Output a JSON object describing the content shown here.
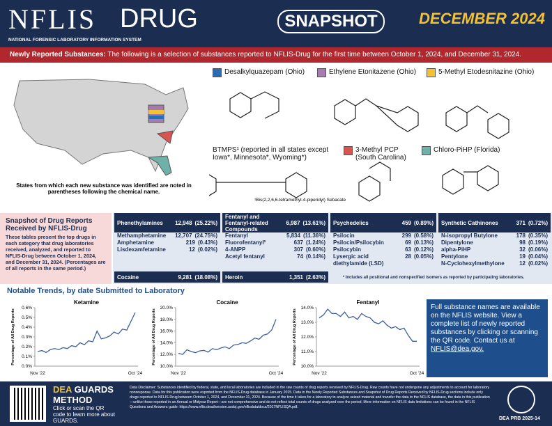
{
  "header": {
    "logo": "NFLIS",
    "logo_drug": "DRUG",
    "subtitle": "NATIONAL FORENSIC LABORATORY INFORMATION SYSTEM",
    "snapshot": "SNAPSHOT",
    "date": "DECEMBER 2024"
  },
  "new_substances": {
    "label": "Newly Reported Substances:",
    "description": "The following is a selection of substances reported to NFLIS-Drug for the first time between October 1, 2024, and December 31, 2024.",
    "map_caption": "States from which each new substance was identified are noted in parentheses following the chemical name.",
    "items": [
      {
        "name": "Desalkylquazepam (Ohio)",
        "color": "#2a6db3"
      },
      {
        "name": "Ethylene Etonitazene (Ohio)",
        "color": "#a57bb0"
      },
      {
        "name": "5-Methyl Etodesnitazine (Ohio)",
        "color": "#f2c230"
      },
      {
        "name": "BTMPS¹ (reported in all states except Iowa*, Minnesota*, Wyoming*)",
        "color": null
      },
      {
        "name": "3-Methyl PCP (South Carolina)",
        "color": "#d9534f"
      },
      {
        "name": "Chloro-PiHP (Florida)",
        "color": "#6fb0a8"
      }
    ],
    "footnote": "¹Bis(2,2,6,6-tetramethyl-4-piperidyl) Sebacate"
  },
  "snapshot": {
    "title": "Snapshot of Drug Reports Received by NFLIS-Drug",
    "description": "These tables present the top drugs in each category that drug laboratories received, analyzed, and reported to NFLIS-Drug between October 1, 2024, and December 31, 2024. (Percentages are of all reports in the same period.)",
    "groups": [
      {
        "name": "Phenethylamines",
        "total": "12,948",
        "pct": "(25.22%)",
        "rows": [
          [
            "Methamphetamine",
            "12,707",
            "(24.75%)"
          ],
          [
            "Amphetamine",
            "219",
            "(0.43%)"
          ],
          [
            "Lisdexamfetamine",
            "12",
            "(0.02%)"
          ]
        ]
      },
      {
        "name": "Fentanyl and Fentanyl-related Compounds",
        "total": "6,987",
        "pct": "(13.61%)",
        "rows": [
          [
            "Fentanyl",
            "5,834",
            "(11.36%)"
          ],
          [
            "Fluorofentanyl²",
            "637",
            "(1.24%)"
          ],
          [
            "4-ANPP",
            "307",
            "(0.60%)"
          ],
          [
            "Acetyl fentanyl",
            "74",
            "(0.14%)"
          ]
        ]
      },
      {
        "name": "Psychedelics",
        "total": "459",
        "pct": "(0.89%)",
        "rows": [
          [
            "Psilocin",
            "299",
            "(0.58%)"
          ],
          [
            "Psilocin/Psilocybin",
            "69",
            "(0.13%)"
          ],
          [
            "Psilocybin",
            "63",
            "(0.12%)"
          ],
          [
            "Lysergic acid diethylamide (LSD)",
            "28",
            "(0.05%)"
          ]
        ]
      },
      {
        "name": "Synthetic Cathinones",
        "total": "371",
        "pct": "(0.72%)",
        "rows": [
          [
            "N-isopropyl Butylone",
            "178",
            "(0.35%)"
          ],
          [
            "Dipentylone",
            "98",
            "(0.19%)"
          ],
          [
            "alpha-PiHP",
            "32",
            "(0.06%)"
          ],
          [
            "Pentylone",
            "19",
            "(0.04%)"
          ],
          [
            "N-Cyclohexylmethylone",
            "12",
            "(0.02%)"
          ]
        ]
      }
    ],
    "bottom": [
      {
        "name": "Cocaine",
        "total": "9,281",
        "pct": "(18.08%)"
      },
      {
        "name": "Heroin",
        "total": "1,351",
        "pct": "(2.63%)"
      }
    ],
    "footnote": "² Includes all positional and nonspecified isomers as reported by participating laboratories."
  },
  "trends_title": "Notable Trends, by date Submitted to Laboratory",
  "chart_data": [
    {
      "type": "line",
      "title": "Ketamine",
      "y_label": "Percentage of All Drug Reports",
      "color": "#3a5f9a",
      "grid": false,
      "categories": [
        "Nov '22",
        null,
        null,
        null,
        null,
        null,
        null,
        null,
        null,
        null,
        null,
        null,
        null,
        null,
        null,
        null,
        null,
        null,
        null,
        null,
        null,
        null,
        null,
        "Oct '24"
      ],
      "values": [
        0.15,
        0.16,
        0.14,
        0.17,
        0.18,
        0.17,
        0.19,
        0.18,
        0.21,
        0.2,
        0.24,
        0.22,
        0.26,
        0.25,
        0.36,
        0.28,
        0.29,
        0.31,
        0.35,
        0.33,
        0.38,
        0.37,
        0.46,
        0.55
      ],
      "ylim": [
        0,
        0.6
      ],
      "yticks": [
        {
          "value": 0,
          "label": "0.0%"
        },
        {
          "value": 0.1,
          "label": "0.1%"
        },
        {
          "value": 0.2,
          "label": "0.2%"
        },
        {
          "value": 0.3,
          "label": "0.3%"
        },
        {
          "value": 0.4,
          "label": "0.4%"
        },
        {
          "value": 0.5,
          "label": "0.5%"
        },
        {
          "value": 0.6,
          "label": "0.6%"
        }
      ]
    },
    {
      "type": "line",
      "title": "Cocaine",
      "y_label": "Percentage of All Drug Reports",
      "color": "#3a5f9a",
      "grid": false,
      "categories": [
        "Nov '22",
        null,
        null,
        null,
        null,
        null,
        null,
        null,
        null,
        null,
        null,
        null,
        null,
        null,
        null,
        null,
        null,
        null,
        null,
        null,
        null,
        null,
        null,
        "Oct '24"
      ],
      "values": [
        12.2,
        12.0,
        12.8,
        12.5,
        12.3,
        12.6,
        12.7,
        12.4,
        13.0,
        12.8,
        13.1,
        13.3,
        13.0,
        13.6,
        13.7,
        14.0,
        13.9,
        14.3,
        14.8,
        14.6,
        15.3,
        15.5,
        16.2,
        18.0
      ],
      "ylim": [
        10,
        20
      ],
      "yticks": [
        {
          "value": 10,
          "label": "10.0%"
        },
        {
          "value": 12,
          "label": "12.0%"
        },
        {
          "value": 14,
          "label": "14.0%"
        },
        {
          "value": 16,
          "label": "16.0%"
        },
        {
          "value": 18,
          "label": "18.0%"
        },
        {
          "value": 20,
          "label": "20.0%"
        }
      ]
    },
    {
      "type": "line",
      "title": "Fentanyl",
      "y_label": "Percentage of All Drug Reports",
      "color": "#3a5f9a",
      "grid": false,
      "categories": [
        "Nov '22",
        null,
        null,
        null,
        null,
        null,
        null,
        null,
        null,
        null,
        null,
        null,
        null,
        null,
        null,
        null,
        null,
        null,
        null,
        null,
        null,
        null,
        null,
        "Oct '24"
      ],
      "values": [
        13.3,
        13.5,
        13.9,
        13.6,
        13.6,
        13.4,
        13.7,
        13.3,
        13.4,
        13.2,
        13.6,
        13.4,
        13.3,
        13.0,
        12.9,
        13.1,
        12.8,
        12.6,
        12.7,
        12.5,
        12.6,
        12.1,
        11.7,
        11.7
      ],
      "ylim": [
        10,
        14
      ],
      "yticks": [
        {
          "value": 10,
          "label": "10.0%"
        },
        {
          "value": 11,
          "label": "11.0%"
        },
        {
          "value": 12,
          "label": "12.0%"
        },
        {
          "value": 13,
          "label": "13.0%"
        },
        {
          "value": 14,
          "label": "14.0%"
        }
      ]
    }
  ],
  "sidebar": {
    "text": "Full substance names are available on the NFLIS website. View a complete list of newly reported substances by clicking or scanning the QR code. Contact us at",
    "email": "NFLIS@dea.gov."
  },
  "footer": {
    "dea": "DEA",
    "guards": "GUARDS",
    "method": "METHOD",
    "qr_text": "Click or scan the QR code to learn more about GUARDS.",
    "disclaimer": "Data Disclaimer: Substances identified by federal, state, and local laboratories are included in the raw counts of drug reports received by NFLIS-Drug. Raw counts have not undergone any adjustments to account for laboratory nonresponse. Data for this publication were exported from the NFLIS-Drug database in January 2025. Data in the Newly Reported Substances and Snapshot of Drug Reports Received by NFLIS-Drug sections include only drugs reported to NFLIS-Drug between October 1, 2024, and December 31, 2024. Because of the time it takes for a laboratory to analyze seized material and transfer the data to the NFLIS database, the data in this publication—unlike those reported in an Annual or Midyear Report—are not comprehensive and do not reflect total counts of drugs analyzed over the period. More information on NFLIS data limitations can be found in the NFLIS Questions and Answers guide: https://www.nflis.deadiversion.usdoj.gov/nflisdata/docs/2017NFLISQA.pdf.",
    "code": "DEA PRB 2025-14"
  }
}
